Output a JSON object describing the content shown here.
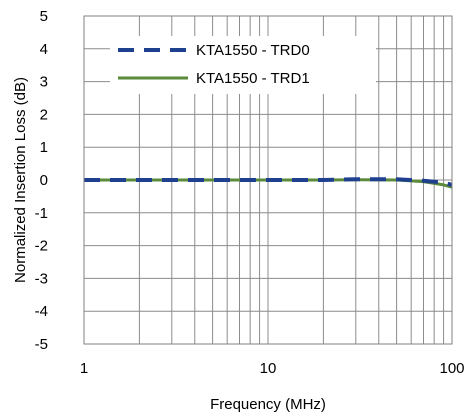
{
  "chart_data": {
    "type": "line",
    "xlabel": "Frequency (MHz)",
    "ylabel": "Normalized Insertion Loss (dB)",
    "x_scale": "log",
    "xlim": [
      1,
      100
    ],
    "ylim": [
      -5,
      5
    ],
    "x_ticks": [
      1,
      10,
      100
    ],
    "x_tick_labels": [
      "1",
      "10",
      "100"
    ],
    "y_ticks": [
      -5,
      -4,
      -3,
      -2,
      -1,
      0,
      1,
      2,
      3,
      4,
      5
    ],
    "y_tick_labels": [
      "-5",
      "-4",
      "-3",
      "-2",
      "-1",
      "0",
      "1",
      "2",
      "3",
      "4",
      "5"
    ],
    "grid": true,
    "legend_position": "top-left",
    "series": [
      {
        "name": "KTA1550 - TRD0",
        "color": "#1F3F8F",
        "style": "dashed",
        "x": [
          1,
          2,
          3,
          5,
          7,
          10,
          20,
          30,
          50,
          70,
          90,
          100
        ],
        "y": [
          0.0,
          0.0,
          0.0,
          0.0,
          0.0,
          0.0,
          0.0,
          0.02,
          0.02,
          -0.02,
          -0.08,
          -0.15
        ]
      },
      {
        "name": "KTA1550 - TRD1",
        "color": "#5A8A3A",
        "style": "solid",
        "x": [
          1,
          2,
          3,
          5,
          7,
          10,
          20,
          30,
          50,
          70,
          90,
          100
        ],
        "y": [
          0.0,
          0.0,
          0.0,
          0.0,
          0.0,
          0.0,
          0.0,
          0.01,
          0.0,
          -0.05,
          -0.15,
          -0.22
        ]
      }
    ]
  }
}
